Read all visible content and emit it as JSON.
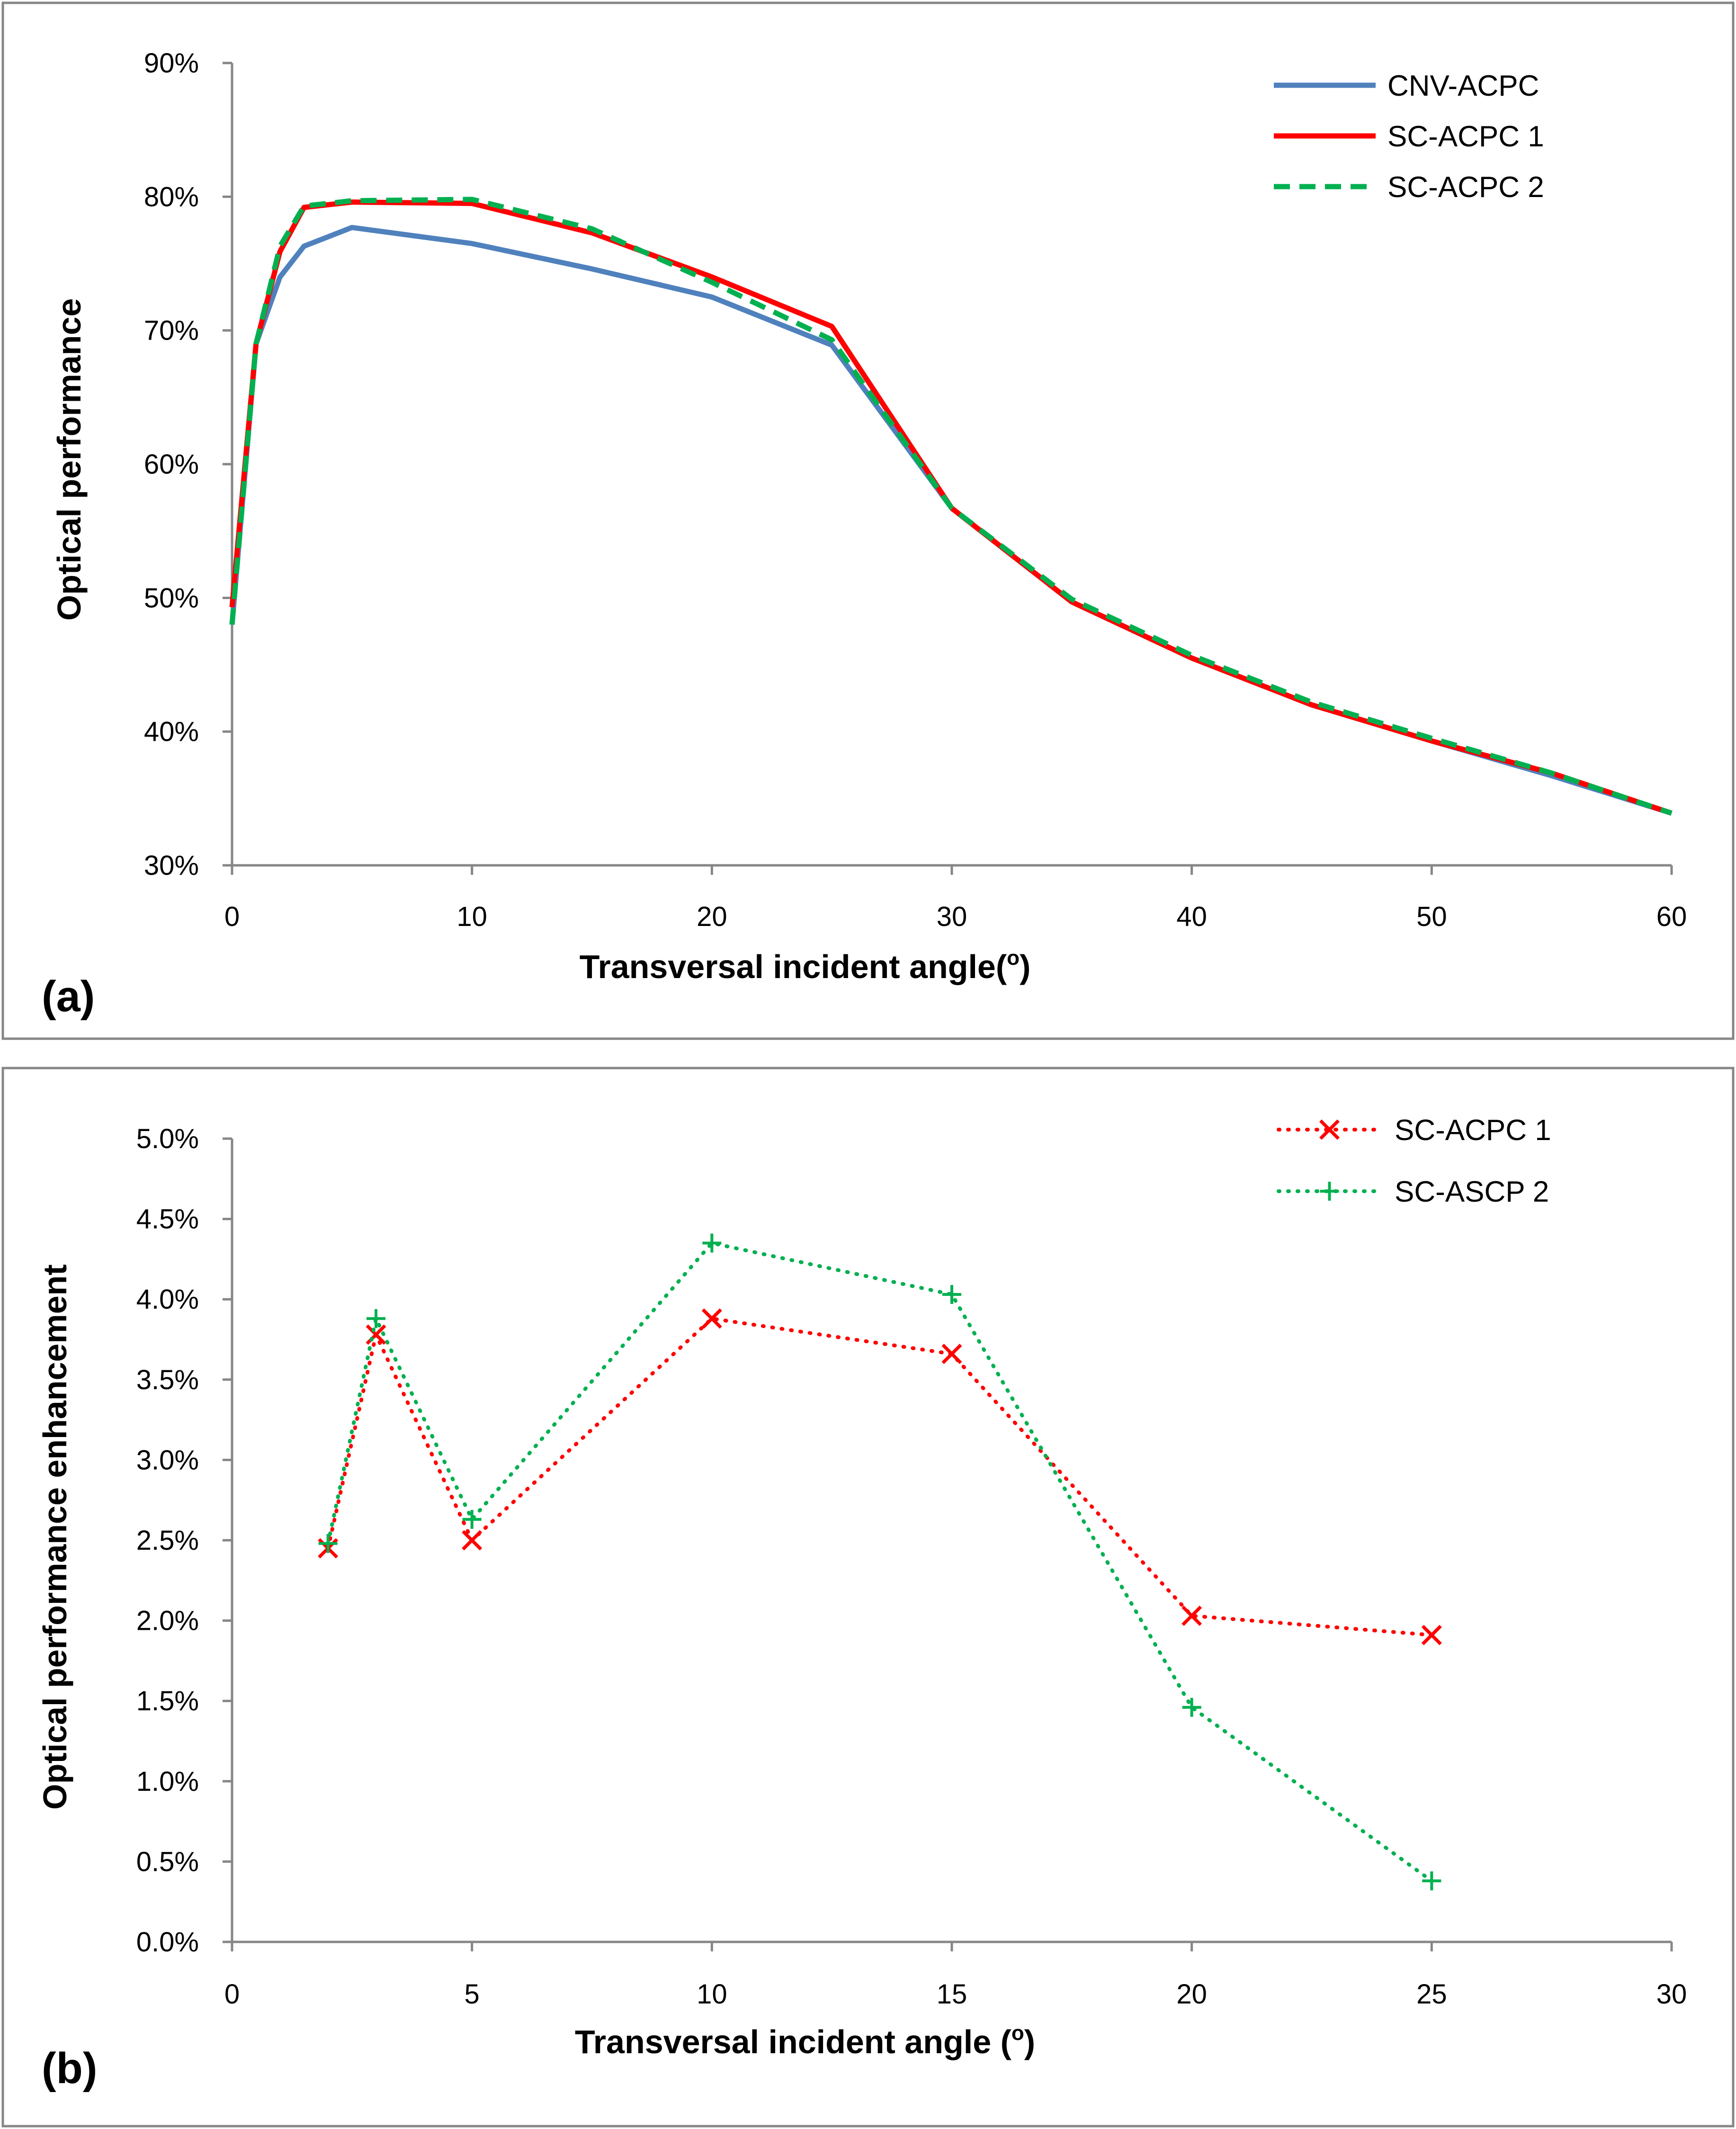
{
  "chart_data": [
    {
      "id": "a",
      "type": "line",
      "panel_label": "(a)",
      "xlabel": "Transversal incident angle(",
      "xlabel_sup": "o",
      "xlabel_close": ")",
      "ylabel": "Optical performance",
      "xlim": [
        0,
        60
      ],
      "ylim": [
        0.3,
        0.9
      ],
      "xticks": [
        0,
        10,
        20,
        30,
        40,
        50,
        60
      ],
      "yticks": [
        0.3,
        0.4,
        0.5,
        0.6,
        0.7,
        0.8,
        0.9
      ],
      "ytick_labels": [
        "30%",
        "40%",
        "50%",
        "60%",
        "70%",
        "80%",
        "90%"
      ],
      "legend_position": "top-right",
      "series": [
        {
          "name": "CNV-ACPC",
          "color": "#4F81BD",
          "style": "solid",
          "x": [
            0,
            1,
            2,
            3,
            5,
            10,
            15,
            20,
            25,
            30,
            35,
            40,
            45,
            50,
            55,
            60
          ],
          "y": [
            0.48,
            0.69,
            0.74,
            0.763,
            0.777,
            0.765,
            0.746,
            0.725,
            0.689,
            0.567,
            0.497,
            0.455,
            0.42,
            0.393,
            0.367,
            0.339
          ]
        },
        {
          "name": "SC-ACPC 1",
          "color": "#FF0000",
          "style": "solid",
          "x": [
            0,
            1,
            2,
            3,
            5,
            10,
            15,
            20,
            25,
            30,
            35,
            40,
            45,
            50,
            55,
            60
          ],
          "y": [
            0.493,
            0.69,
            0.759,
            0.792,
            0.796,
            0.795,
            0.773,
            0.74,
            0.703,
            0.567,
            0.497,
            0.455,
            0.42,
            0.393,
            0.369,
            0.339
          ]
        },
        {
          "name": "SC-ACPC 2",
          "color": "#00B050",
          "style": "dashed",
          "x": [
            0,
            1,
            2,
            3,
            5,
            10,
            15,
            20,
            25,
            30,
            35,
            40,
            45,
            50,
            55,
            60
          ],
          "y": [
            0.48,
            0.69,
            0.763,
            0.793,
            0.797,
            0.798,
            0.776,
            0.736,
            0.693,
            0.567,
            0.499,
            0.457,
            0.422,
            0.395,
            0.369,
            0.339
          ]
        }
      ]
    },
    {
      "id": "b",
      "type": "line",
      "panel_label": "(b)",
      "xlabel": "Transversal incident angle (",
      "xlabel_sup": "o",
      "xlabel_close": ")",
      "ylabel": "Optical performance enhancement",
      "xlim": [
        0,
        30
      ],
      "ylim": [
        0.0,
        0.05
      ],
      "xticks": [
        0,
        5,
        10,
        15,
        20,
        25,
        30
      ],
      "yticks": [
        0.0,
        0.005,
        0.01,
        0.015,
        0.02,
        0.025,
        0.03,
        0.035,
        0.04,
        0.045,
        0.05
      ],
      "ytick_labels": [
        "0.0%",
        "0.5%",
        "1.0%",
        "1.5%",
        "2.0%",
        "2.5%",
        "3.0%",
        "3.5%",
        "4.0%",
        "4.5%",
        "5.0%"
      ],
      "legend_position": "top-right",
      "series": [
        {
          "name": "SC-ACPC 1",
          "color": "#FF0000",
          "style": "dotted",
          "marker": "x",
          "x": [
            2,
            3,
            5,
            10,
            15,
            20,
            25
          ],
          "y": [
            0.0245,
            0.0378,
            0.025,
            0.0388,
            0.0366,
            0.0203,
            0.0191
          ]
        },
        {
          "name": "SC-ASCP 2",
          "color": "#00B050",
          "style": "dotted",
          "marker": "+",
          "x": [
            2,
            3,
            5,
            10,
            15,
            20,
            25
          ],
          "y": [
            0.0248,
            0.0388,
            0.0263,
            0.0435,
            0.0403,
            0.0146,
            0.0038
          ]
        }
      ]
    }
  ]
}
